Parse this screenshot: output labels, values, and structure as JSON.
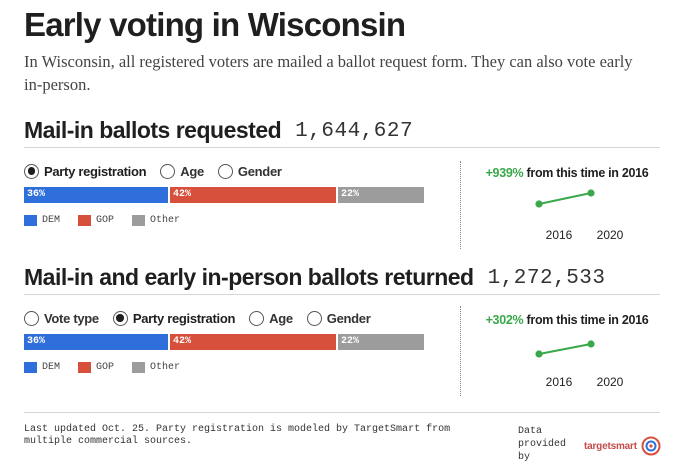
{
  "title": "Early voting in Wisconsin",
  "intro": "In Wisconsin, all registered voters are mailed a ballot request form. They can also vote early in-person.",
  "colors": {
    "dem": "#2f6fdb",
    "gop": "#d6503c",
    "other": "#9c9c9c",
    "growth": "#3aa84a"
  },
  "sections": [
    {
      "title": "Mail-in ballots requested",
      "total": "1,644,627",
      "radios": [
        {
          "label": "Party registration",
          "selected": true
        },
        {
          "label": "Age",
          "selected": false
        },
        {
          "label": "Gender",
          "selected": false
        }
      ],
      "bar": [
        {
          "key": "dem",
          "label": "36%",
          "value": 36
        },
        {
          "key": "gop",
          "label": "42%",
          "value": 42
        },
        {
          "key": "other",
          "label": "22%",
          "value": 22
        }
      ],
      "legend": [
        {
          "key": "dem",
          "label": "DEM"
        },
        {
          "key": "gop",
          "label": "GOP"
        },
        {
          "key": "other",
          "label": "Other"
        }
      ],
      "growth": {
        "pct": "+939%",
        "text": " from this time in 2016"
      },
      "years": [
        "2016",
        "2020"
      ]
    },
    {
      "title": "Mail-in and early in-person ballots returned",
      "total": "1,272,533",
      "radios": [
        {
          "label": "Vote type",
          "selected": false
        },
        {
          "label": "Party registration",
          "selected": true
        },
        {
          "label": "Age",
          "selected": false
        },
        {
          "label": "Gender",
          "selected": false
        }
      ],
      "bar": [
        {
          "key": "dem",
          "label": "36%",
          "value": 36
        },
        {
          "key": "gop",
          "label": "42%",
          "value": 42
        },
        {
          "key": "other",
          "label": "22%",
          "value": 22
        }
      ],
      "legend": [
        {
          "key": "dem",
          "label": "DEM"
        },
        {
          "key": "gop",
          "label": "GOP"
        },
        {
          "key": "other",
          "label": "Other"
        }
      ],
      "growth": {
        "pct": "+302%",
        "text": " from this time in 2016"
      },
      "years": [
        "2016",
        "2020"
      ]
    }
  ],
  "footer": {
    "note": "Last updated Oct. 25. Party registration is modeled by TargetSmart from multiple commercial sources.",
    "provided": "Data provided by",
    "logo_text": "targetsmart",
    "logo_icon": "target-icon"
  }
}
